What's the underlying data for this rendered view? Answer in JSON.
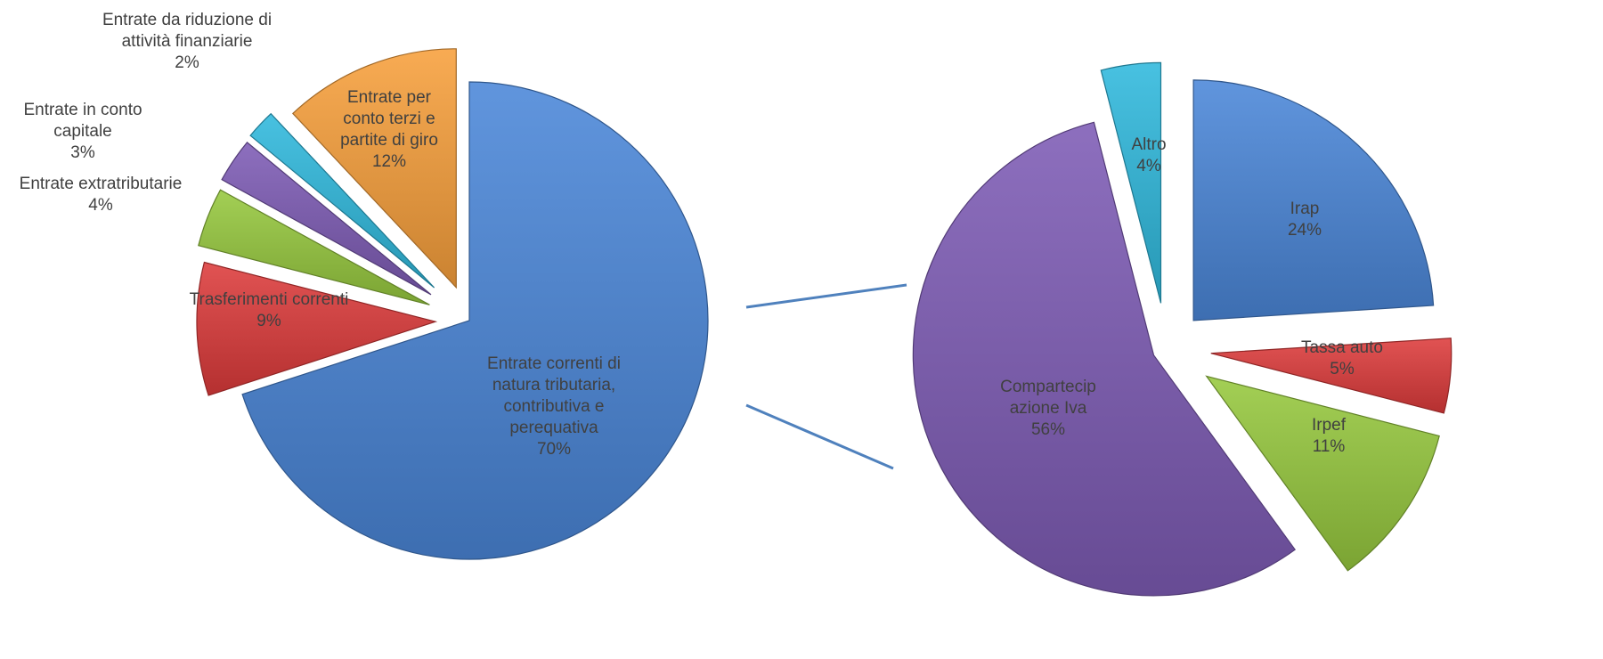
{
  "chart_data": [
    {
      "type": "pie",
      "exploded": true,
      "slices": [
        {
          "label_lines": [
            "Entrate correnti di",
            "natura tributaria,",
            "contributiva e",
            "perequativa"
          ],
          "pct_label": "70%",
          "value": 70,
          "color": "#4a86d8"
        },
        {
          "label_lines": [
            "Trasferimenti correnti"
          ],
          "pct_label": "9%",
          "value": 9,
          "color": "#dd3b3b"
        },
        {
          "label_lines": [
            "Entrate extratributarie"
          ],
          "pct_label": "4%",
          "value": 4,
          "color": "#96c83e"
        },
        {
          "label_lines": [
            "Entrate in conto",
            "capitale"
          ],
          "pct_label": "3%",
          "value": 3,
          "color": "#7e5bb5"
        },
        {
          "label_lines": [
            "Entrate da riduzione di",
            "attività finanziarie"
          ],
          "pct_label": "2%",
          "value": 2,
          "color": "#2fb9dd"
        },
        {
          "label_lines": [
            "Entrate per",
            "conto terzi e",
            "partite di giro"
          ],
          "pct_label": "12%",
          "value": 12,
          "color": "#f7a03c"
        }
      ]
    },
    {
      "type": "pie",
      "exploded": true,
      "slices": [
        {
          "label_lines": [
            "Irap"
          ],
          "pct_label": "24%",
          "value": 24,
          "color": "#4a86d8"
        },
        {
          "label_lines": [
            "Tassa auto"
          ],
          "pct_label": "5%",
          "value": 5,
          "color": "#dd3b3b"
        },
        {
          "label_lines": [
            "Irpef"
          ],
          "pct_label": "11%",
          "value": 11,
          "color": "#96c83e"
        },
        {
          "label_lines": [
            "Compartecip",
            "azione Iva"
          ],
          "pct_label": "56%",
          "value": 56,
          "color": "#7e5bb5"
        },
        {
          "label_lines": [
            "Altro"
          ],
          "pct_label": "4%",
          "value": 4,
          "color": "#2fb9dd"
        }
      ]
    }
  ],
  "colors": {
    "connector": "#4f81bd",
    "text": "#404040"
  }
}
